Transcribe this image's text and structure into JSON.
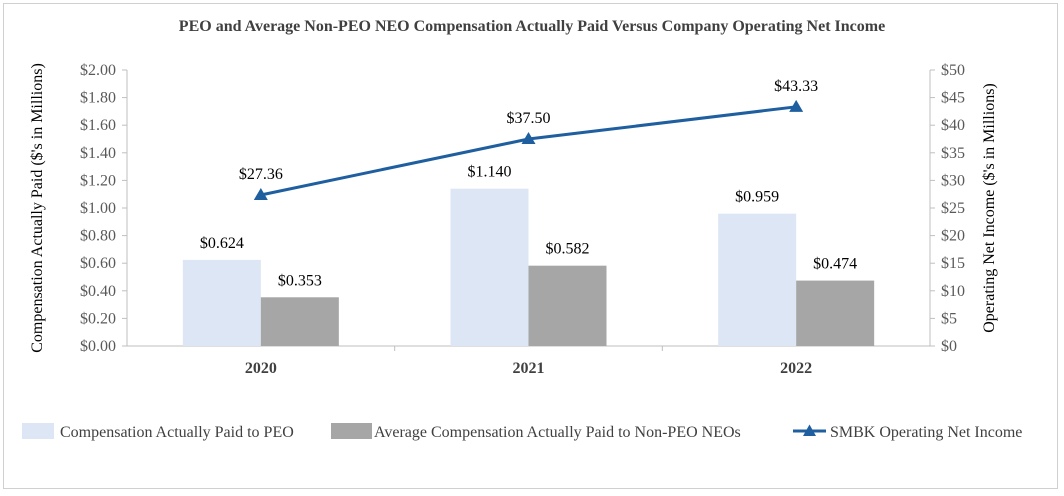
{
  "chart_data": {
    "type": "bar",
    "title": "PEO and Average Non-PEO NEO Compensation Actually Paid Versus Company Operating Net Income",
    "categories": [
      "2020",
      "2021",
      "2022"
    ],
    "series": [
      {
        "name": "Compensation Actually Paid to PEO",
        "type": "bar",
        "axis": "left",
        "color": "#dce6f5",
        "values": [
          0.624,
          1.14,
          0.959
        ],
        "labels": [
          "$0.624",
          "$1.140",
          "$0.959"
        ]
      },
      {
        "name": "Average Compensation Actually Paid to Non-PEO NEOs",
        "type": "bar",
        "axis": "left",
        "color": "#a6a6a6",
        "values": [
          0.353,
          0.582,
          0.474
        ],
        "labels": [
          "$0.353",
          "$0.582",
          "$0.474"
        ]
      },
      {
        "name": "SMBK Operating Net Income",
        "type": "line",
        "axis": "right",
        "color": "#1f5fa0",
        "values": [
          27.36,
          37.5,
          43.33
        ],
        "labels": [
          "$27.36",
          "$37.50",
          "$43.33"
        ]
      }
    ],
    "y_left": {
      "label": "Compensation Actually Paid ($'s in Millions)",
      "min": 0,
      "max": 2.0,
      "step": 0.2,
      "ticks": [
        "$0.00",
        "$0.20",
        "$0.40",
        "$0.60",
        "$0.80",
        "$1.00",
        "$1.20",
        "$1.40",
        "$1.60",
        "$1.80",
        "$2.00"
      ]
    },
    "y_right": {
      "label": "Operating Net Income ($'s in Millions)",
      "min": 0,
      "max": 50,
      "step": 5,
      "ticks": [
        "$0",
        "$5",
        "$10",
        "$15",
        "$20",
        "$25",
        "$30",
        "$35",
        "$40",
        "$45",
        "$50"
      ]
    },
    "grid": false,
    "legend_position": "bottom"
  }
}
